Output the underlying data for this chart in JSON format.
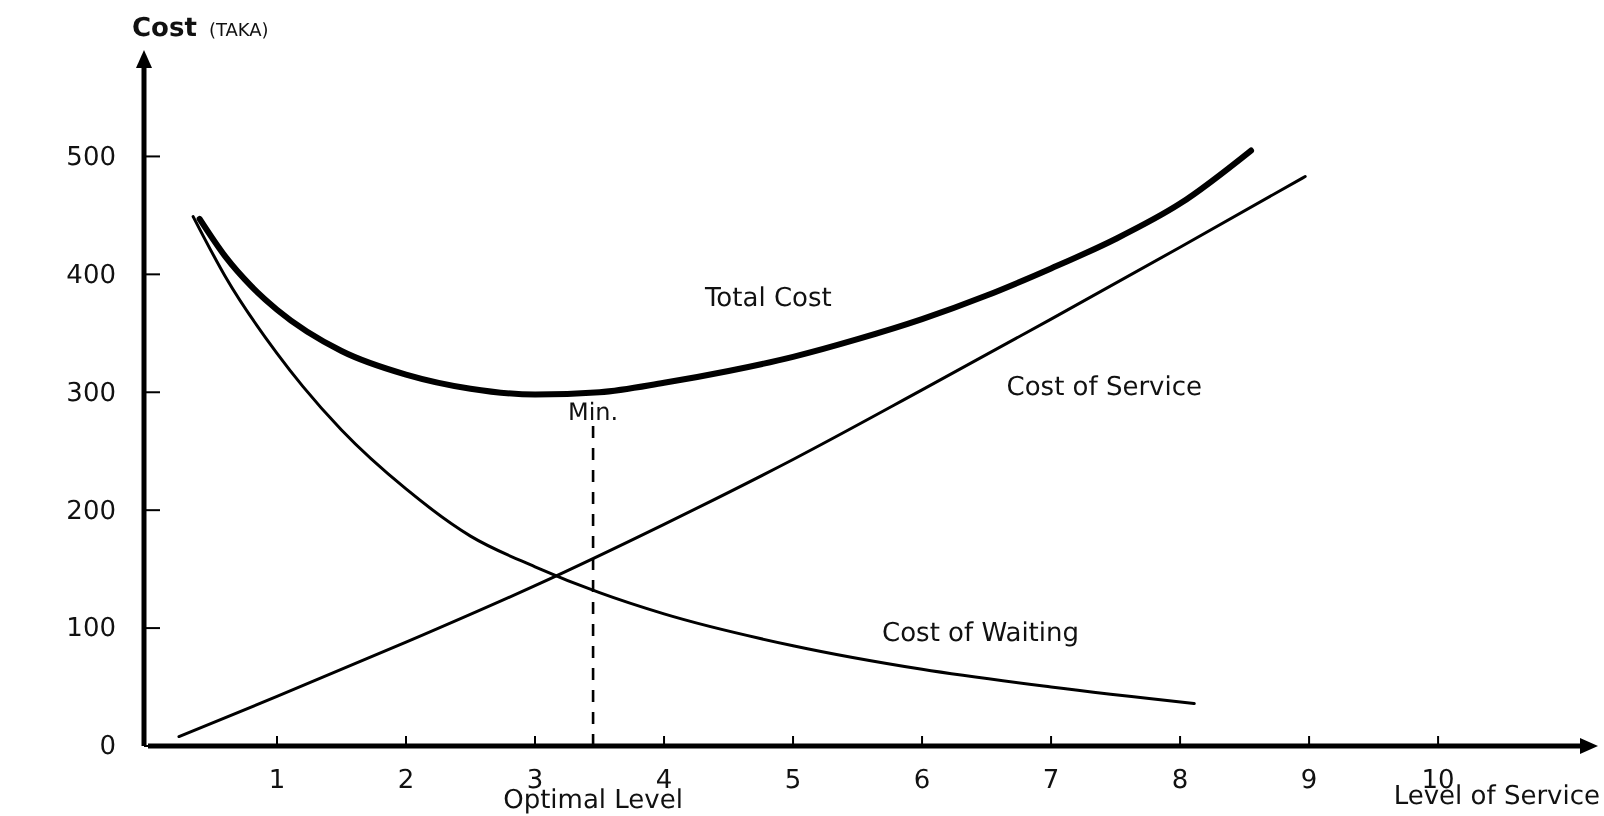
{
  "chart_data": {
    "type": "line",
    "ylabel": "Cost (TAKA)",
    "xlabel": "Level of Service",
    "xlim": [
      0,
      11.1
    ],
    "ylim": [
      0,
      575
    ],
    "xticks": [
      1,
      2,
      3,
      4,
      5,
      6,
      7,
      8,
      9,
      10
    ],
    "yticks": [
      0,
      100,
      200,
      300,
      400,
      500
    ],
    "grid": false,
    "marker": "none",
    "line_style": "solid",
    "series": [
      {
        "name": "Total Cost",
        "color": "#000000",
        "x": [
          0.4,
          0.6,
          0.8,
          1,
          1.5,
          2,
          2.5,
          3,
          3.5,
          4,
          4.5,
          5,
          5.5,
          6,
          6.5,
          7,
          7.5,
          8,
          8.55
        ],
        "values": [
          447,
          415,
          390,
          370,
          335,
          315,
          303,
          298,
          300,
          308,
          318,
          330,
          345,
          362,
          382,
          405,
          430,
          460,
          505
        ]
      },
      {
        "name": "Cost of Service",
        "color": "#000000",
        "x": [
          0.24,
          1,
          2,
          3,
          4,
          5,
          6,
          7,
          8,
          8.97
        ],
        "values": [
          8,
          42,
          88,
          136,
          188,
          243,
          302,
          362,
          423,
          483
        ]
      },
      {
        "name": "Cost of Waiting",
        "color": "#000000",
        "x": [
          0.35,
          0.6,
          1,
          1.2,
          1.5,
          2,
          2.5,
          3,
          3.5,
          4,
          5,
          6,
          7,
          8.11
        ],
        "values": [
          449,
          398,
          333,
          305,
          268,
          218,
          178,
          152,
          130,
          112,
          85,
          65,
          50,
          36
        ]
      }
    ],
    "ref_lines": [
      {
        "axis": "x",
        "value": 3.45,
        "label": "Min.",
        "line_style": "dashed"
      }
    ],
    "annotations": [
      {
        "text": "Optimal Level",
        "x": 3.45,
        "y": 0
      }
    ]
  }
}
